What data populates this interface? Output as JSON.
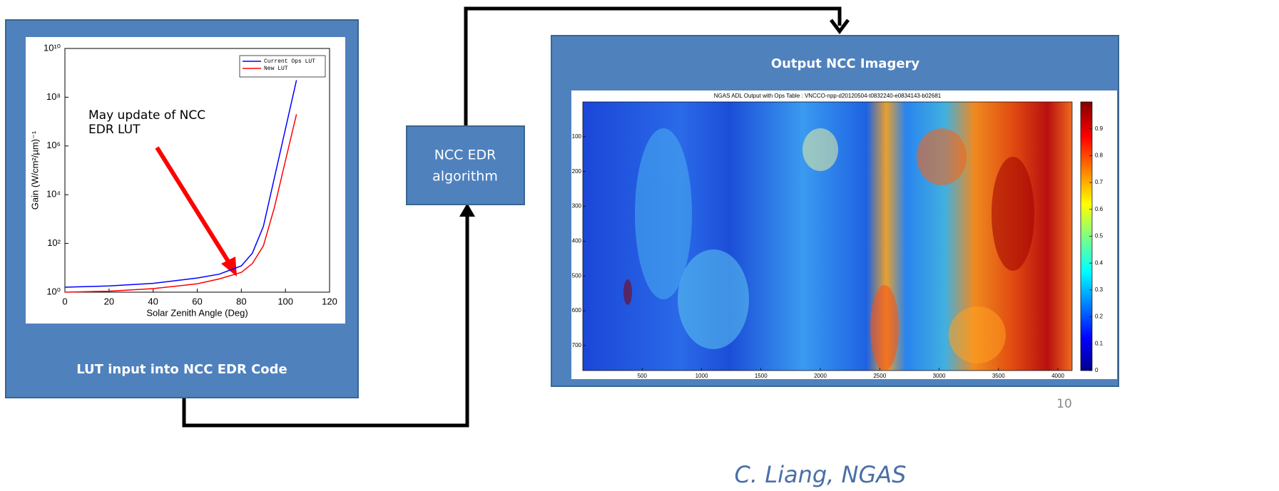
{
  "chart_data": {
    "type": "line",
    "x": [
      0,
      20,
      40,
      60,
      70,
      80,
      85,
      90,
      95,
      100,
      105
    ],
    "series": [
      {
        "name": "Current Ops LUT",
        "color": "#0000ff",
        "values": [
          1.6,
          1.8,
          2.3,
          3.8,
          5.5,
          12,
          40,
          500,
          50000,
          5000000,
          500000000
        ]
      },
      {
        "name": "New LUT",
        "color": "#ff0000",
        "values": [
          1,
          1.1,
          1.4,
          2.2,
          3.5,
          6.5,
          15,
          80,
          3000,
          250000,
          20000000
        ]
      }
    ],
    "x_label": "Solar Zenith Angle (Deg)",
    "y_label": "Gain (W/cm²/µm)⁻¹",
    "xlim": [
      0,
      120
    ],
    "xticks": [
      0,
      20,
      40,
      60,
      80,
      100,
      120
    ],
    "ylim": [
      1,
      10000000000
    ],
    "yticks": [
      {
        "value": 1,
        "label": "10⁰"
      },
      {
        "value": 100,
        "label": "10²"
      },
      {
        "value": 10000,
        "label": "10⁴"
      },
      {
        "value": 1000000,
        "label": "10⁶"
      },
      {
        "value": 100000000,
        "label": "10⁸"
      },
      {
        "value": 10000000000,
        "label": "10¹⁰"
      }
    ],
    "log_y": true,
    "grid": false,
    "legend": "upper right",
    "annotation": [
      "May update of NCC",
      "EDR LUT"
    ]
  },
  "diagram": {
    "left_caption": "LUT input into NCC EDR Code",
    "algorithm_box": [
      "NCC EDR",
      "algorithm"
    ],
    "right_title": "Output NCC Imagery",
    "image": {
      "title": "NGAS ADL Output with Ops Table : VNCCO-npp-d20120504-t0832240-e0834143-b02681",
      "xlim": [
        0,
        4120
      ],
      "xticks": [
        500,
        1000,
        1500,
        2000,
        2500,
        3000,
        3500,
        4000
      ],
      "ylim": [
        0,
        772
      ],
      "yticks": [
        100,
        200,
        300,
        400,
        500,
        600,
        700
      ],
      "colorbar_lim": [
        0,
        1
      ],
      "colorbar_ticks": [
        0,
        0.1,
        0.2,
        0.3,
        0.4,
        0.5,
        0.6,
        0.7,
        0.8,
        0.9
      ]
    },
    "credit": "C. Liang, NGAS",
    "page_number": "10"
  }
}
